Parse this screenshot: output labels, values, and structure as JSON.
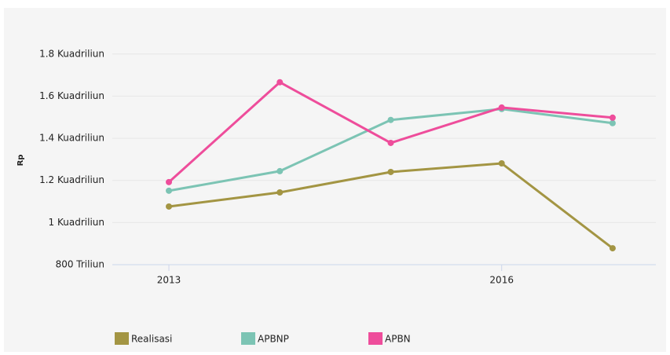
{
  "chart_data": {
    "type": "line",
    "y_label": "Rp",
    "x": [
      2013,
      2014,
      2015,
      2016,
      2017
    ],
    "xlim": [
      2012.49,
      2017.39
    ],
    "xticks": [
      2013,
      2016
    ],
    "ylim": [
      800,
      1870
    ],
    "yticks": [
      {
        "value": 800,
        "label": "800 Triliun"
      },
      {
        "value": 1000,
        "label": "1 Kuadriliun"
      },
      {
        "value": 1200,
        "label": "1.2 Kuadriliun"
      },
      {
        "value": 1400,
        "label": "1.4 Kuadriliun"
      },
      {
        "value": 1600,
        "label": "1.6 Kuadriliun"
      },
      {
        "value": 1800,
        "label": "1.8 Kuadriliun"
      }
    ],
    "grid": true,
    "legend": "bottom",
    "series": [
      {
        "name": "Realisasi",
        "color": "#a39543",
        "values": [
          1076,
          1143,
          1240,
          1281,
          878
        ]
      },
      {
        "name": "APBNP",
        "color": "#7cc4b4",
        "values": [
          1151,
          1244,
          1487,
          1539,
          1472
        ]
      },
      {
        "name": "APBN",
        "color": "#ee4d9b",
        "values": [
          1192,
          1666,
          1378,
          1546,
          1498
        ]
      }
    ]
  }
}
